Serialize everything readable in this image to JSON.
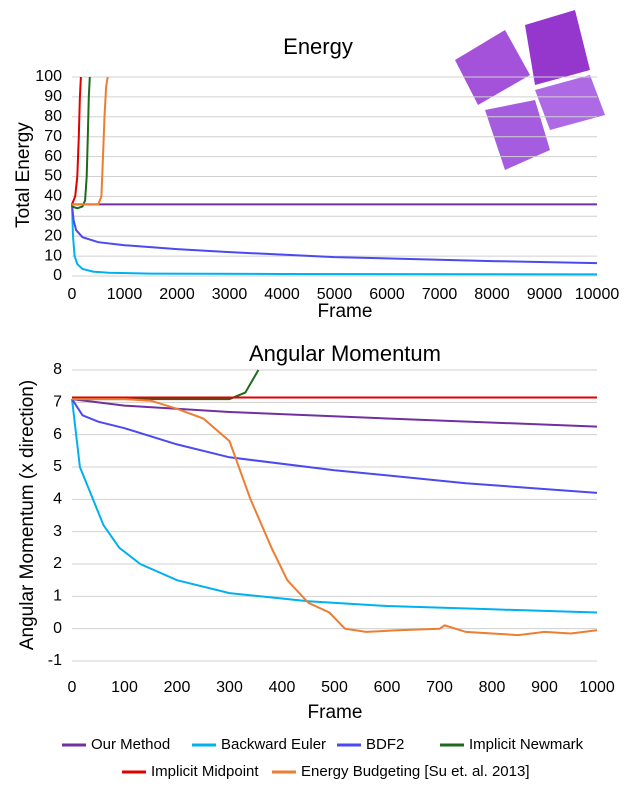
{
  "chart_data": [
    {
      "type": "line",
      "title": "Energy",
      "xlabel": "Frame",
      "ylabel": "Total Energy",
      "xlim": [
        0,
        10000
      ],
      "ylim": [
        0,
        100
      ],
      "xticks": [
        0,
        1000,
        2000,
        3000,
        4000,
        5000,
        6000,
        7000,
        8000,
        9000,
        10000
      ],
      "yticks": [
        0,
        10,
        20,
        30,
        40,
        50,
        60,
        70,
        80,
        90,
        100
      ],
      "grid": true,
      "series": [
        {
          "color": "#7030a0",
          "x": [
            0,
            2000,
            4000,
            6000,
            8000,
            10000
          ],
          "values": [
            36,
            36,
            36,
            36,
            36,
            36
          ]
        },
        {
          "color": "#00b0f0",
          "x": [
            0,
            20,
            50,
            100,
            200,
            400,
            700,
            1500,
            4000,
            10000
          ],
          "values": [
            36,
            20,
            10,
            6,
            3.5,
            2.2,
            1.6,
            1.2,
            1,
            0.8
          ]
        },
        {
          "color": "#4a4af0",
          "x": [
            0,
            30,
            80,
            200,
            500,
            1000,
            2000,
            3000,
            5000,
            8000,
            10000
          ],
          "values": [
            36,
            28,
            23,
            19.5,
            17,
            15.5,
            13.5,
            12,
            9.5,
            7.5,
            6.5
          ]
        },
        {
          "color": "#1e6b1e",
          "x": [
            0,
            100,
            200,
            250,
            280,
            300,
            320,
            340
          ],
          "values": [
            35,
            34,
            35,
            38,
            50,
            70,
            90,
            100
          ]
        },
        {
          "color": "#e00000",
          "x": [
            0,
            60,
            100,
            130,
            150,
            170
          ],
          "values": [
            36,
            40,
            50,
            70,
            90,
            100
          ]
        },
        {
          "color": "#ed7d31",
          "x": [
            0,
            500,
            560,
            590,
            620,
            650,
            680
          ],
          "values": [
            36,
            36,
            40,
            60,
            80,
            95,
            100
          ]
        }
      ]
    },
    {
      "type": "line",
      "title": "Angular Momentum",
      "xlabel": "Frame",
      "ylabel": "Angular Momentum (x direction)",
      "xlim": [
        0,
        1000
      ],
      "ylim": [
        -1,
        8
      ],
      "xticks": [
        0,
        100,
        200,
        300,
        400,
        500,
        600,
        700,
        800,
        900,
        1000
      ],
      "yticks": [
        -1,
        0,
        1,
        2,
        3,
        4,
        5,
        6,
        7,
        8
      ],
      "grid": true,
      "series": [
        {
          "name": "Our Method",
          "color": "#7030a0",
          "x": [
            0,
            100,
            300,
            600,
            1000
          ],
          "values": [
            7.1,
            6.9,
            6.7,
            6.5,
            6.25
          ]
        },
        {
          "name": "Backward Euler",
          "color": "#00b0f0",
          "x": [
            0,
            15,
            40,
            60,
            90,
            130,
            200,
            300,
            450,
            600,
            800,
            1000
          ],
          "values": [
            7.1,
            5,
            4,
            3.2,
            2.5,
            2,
            1.5,
            1.1,
            0.85,
            0.7,
            0.6,
            0.5
          ]
        },
        {
          "name": "BDF2",
          "color": "#4a4af0",
          "x": [
            0,
            20,
            50,
            100,
            200,
            300,
            500,
            750,
            1000
          ],
          "values": [
            7.1,
            6.6,
            6.4,
            6.2,
            5.7,
            5.3,
            4.9,
            4.5,
            4.2
          ]
        },
        {
          "name": "Implicit Newmark",
          "color": "#1e6b1e",
          "x": [
            0,
            100,
            200,
            300,
            330,
            355
          ],
          "values": [
            7.1,
            7.1,
            7.1,
            7.1,
            7.3,
            8
          ]
        },
        {
          "name": "Implicit Midpoint",
          "color": "#e00000",
          "x": [
            0,
            1000
          ],
          "values": [
            7.15,
            7.15
          ]
        },
        {
          "name": "Energy Budgeting [Su et. al. 2013]",
          "color": "#ed7d31",
          "x": [
            0,
            100,
            150,
            200,
            250,
            300,
            340,
            380,
            410,
            450,
            490,
            520,
            560,
            620,
            700,
            710,
            750,
            800,
            850,
            900,
            950,
            1000
          ],
          "values": [
            7.1,
            7.1,
            7.05,
            6.8,
            6.5,
            5.8,
            4,
            2.5,
            1.5,
            0.8,
            0.5,
            0,
            -0.1,
            -0.05,
            0,
            0.1,
            -0.1,
            -0.15,
            -0.2,
            -0.1,
            -0.15,
            -0.05
          ]
        }
      ]
    }
  ]
}
